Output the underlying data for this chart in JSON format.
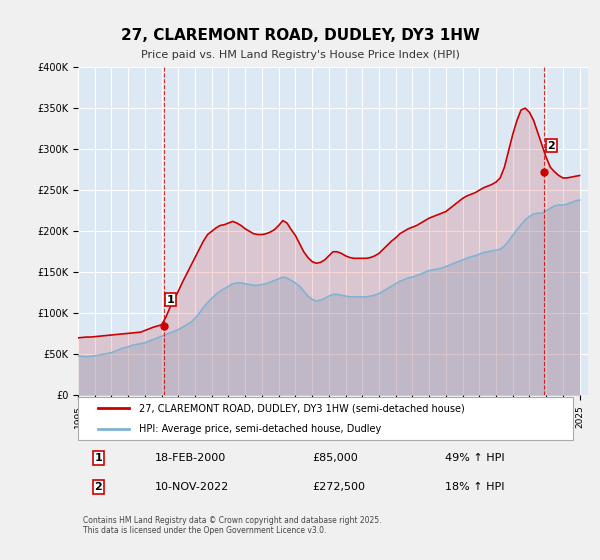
{
  "title": "27, CLAREMONT ROAD, DUDLEY, DY3 1HW",
  "subtitle": "Price paid vs. HM Land Registry's House Price Index (HPI)",
  "x_start": 1995.0,
  "x_end": 2025.5,
  "y_min": 0,
  "y_max": 400000,
  "y_ticks": [
    0,
    50000,
    100000,
    150000,
    200000,
    250000,
    300000,
    350000,
    400000
  ],
  "y_tick_labels": [
    "£0",
    "£50K",
    "£100K",
    "£150K",
    "£200K",
    "£250K",
    "£300K",
    "£350K",
    "£400K"
  ],
  "x_ticks": [
    1995,
    1996,
    1997,
    1998,
    1999,
    2000,
    2001,
    2002,
    2003,
    2004,
    2005,
    2006,
    2007,
    2008,
    2009,
    2010,
    2011,
    2012,
    2013,
    2014,
    2015,
    2016,
    2017,
    2018,
    2019,
    2020,
    2021,
    2022,
    2023,
    2024,
    2025
  ],
  "background_color": "#dce9f5",
  "plot_bg_color": "#dce9f5",
  "grid_color": "#ffffff",
  "red_line_color": "#cc0000",
  "blue_line_color": "#7fb3d3",
  "dashed_line_color": "#cc0000",
  "marker1_x": 2000.12,
  "marker1_y": 85000,
  "marker2_x": 2022.86,
  "marker2_y": 272500,
  "marker2_peak_y": 350000,
  "legend_label_red": "27, CLAREMONT ROAD, DUDLEY, DY3 1HW (semi-detached house)",
  "legend_label_blue": "HPI: Average price, semi-detached house, Dudley",
  "table_row1": [
    "1",
    "18-FEB-2000",
    "£85,000",
    "49% ↑ HPI"
  ],
  "table_row2": [
    "2",
    "10-NOV-2022",
    "£272,500",
    "18% ↑ HPI"
  ],
  "footer": "Contains HM Land Registry data © Crown copyright and database right 2025.\nThis data is licensed under the Open Government Licence v3.0.",
  "hpi_data": {
    "years": [
      1995.0,
      1995.25,
      1995.5,
      1995.75,
      1996.0,
      1996.25,
      1996.5,
      1996.75,
      1997.0,
      1997.25,
      1997.5,
      1997.75,
      1998.0,
      1998.25,
      1998.5,
      1998.75,
      1999.0,
      1999.25,
      1999.5,
      1999.75,
      2000.0,
      2000.25,
      2000.5,
      2000.75,
      2001.0,
      2001.25,
      2001.5,
      2001.75,
      2002.0,
      2002.25,
      2002.5,
      2002.75,
      2003.0,
      2003.25,
      2003.5,
      2003.75,
      2004.0,
      2004.25,
      2004.5,
      2004.75,
      2005.0,
      2005.25,
      2005.5,
      2005.75,
      2006.0,
      2006.25,
      2006.5,
      2006.75,
      2007.0,
      2007.25,
      2007.5,
      2007.75,
      2008.0,
      2008.25,
      2008.5,
      2008.75,
      2009.0,
      2009.25,
      2009.5,
      2009.75,
      2010.0,
      2010.25,
      2010.5,
      2010.75,
      2011.0,
      2011.25,
      2011.5,
      2011.75,
      2012.0,
      2012.25,
      2012.5,
      2012.75,
      2013.0,
      2013.25,
      2013.5,
      2013.75,
      2014.0,
      2014.25,
      2014.5,
      2014.75,
      2015.0,
      2015.25,
      2015.5,
      2015.75,
      2016.0,
      2016.25,
      2016.5,
      2016.75,
      2017.0,
      2017.25,
      2017.5,
      2017.75,
      2018.0,
      2018.25,
      2018.5,
      2018.75,
      2019.0,
      2019.25,
      2019.5,
      2019.75,
      2020.0,
      2020.25,
      2020.5,
      2020.75,
      2021.0,
      2021.25,
      2021.5,
      2021.75,
      2022.0,
      2022.25,
      2022.5,
      2022.75,
      2023.0,
      2023.25,
      2023.5,
      2023.75,
      2024.0,
      2024.25,
      2024.5,
      2024.75,
      2025.0
    ],
    "values": [
      48000,
      47500,
      47000,
      47500,
      48000,
      49000,
      50000,
      51000,
      52000,
      54000,
      56000,
      58000,
      59000,
      61000,
      62000,
      63000,
      64000,
      66000,
      68000,
      70000,
      72000,
      74000,
      76000,
      78000,
      80000,
      83000,
      86000,
      89000,
      94000,
      100000,
      107000,
      113000,
      118000,
      123000,
      127000,
      130000,
      133000,
      136000,
      137000,
      137000,
      136000,
      135000,
      134000,
      134000,
      135000,
      136000,
      138000,
      140000,
      142000,
      144000,
      143000,
      140000,
      137000,
      133000,
      127000,
      121000,
      117000,
      115000,
      116000,
      118000,
      121000,
      123000,
      123000,
      122000,
      121000,
      120000,
      120000,
      120000,
      120000,
      120000,
      121000,
      122000,
      124000,
      127000,
      130000,
      133000,
      136000,
      139000,
      141000,
      143000,
      144000,
      146000,
      148000,
      150000,
      152000,
      153000,
      154000,
      155000,
      157000,
      159000,
      161000,
      163000,
      165000,
      167000,
      169000,
      170000,
      172000,
      174000,
      175000,
      176000,
      177000,
      178000,
      182000,
      188000,
      195000,
      202000,
      208000,
      214000,
      218000,
      221000,
      222000,
      222000,
      225000,
      228000,
      231000,
      232000,
      232000,
      233000,
      235000,
      237000,
      238000
    ]
  },
  "red_data": {
    "years": [
      1995.0,
      1995.25,
      1995.5,
      1995.75,
      1996.0,
      1996.25,
      1996.5,
      1996.75,
      1997.0,
      1997.25,
      1997.5,
      1997.75,
      1998.0,
      1998.25,
      1998.5,
      1998.75,
      1999.0,
      1999.25,
      1999.5,
      1999.75,
      2000.0,
      2000.25,
      2000.5,
      2000.75,
      2001.0,
      2001.25,
      2001.5,
      2001.75,
      2002.0,
      2002.25,
      2002.5,
      2002.75,
      2003.0,
      2003.25,
      2003.5,
      2003.75,
      2004.0,
      2004.25,
      2004.5,
      2004.75,
      2005.0,
      2005.25,
      2005.5,
      2005.75,
      2006.0,
      2006.25,
      2006.5,
      2006.75,
      2007.0,
      2007.25,
      2007.5,
      2007.75,
      2008.0,
      2008.25,
      2008.5,
      2008.75,
      2009.0,
      2009.25,
      2009.5,
      2009.75,
      2010.0,
      2010.25,
      2010.5,
      2010.75,
      2011.0,
      2011.25,
      2011.5,
      2011.75,
      2012.0,
      2012.25,
      2012.5,
      2012.75,
      2013.0,
      2013.25,
      2013.5,
      2013.75,
      2014.0,
      2014.25,
      2014.5,
      2014.75,
      2015.0,
      2015.25,
      2015.5,
      2015.75,
      2016.0,
      2016.25,
      2016.5,
      2016.75,
      2017.0,
      2017.25,
      2017.5,
      2017.75,
      2018.0,
      2018.25,
      2018.5,
      2018.75,
      2019.0,
      2019.25,
      2019.5,
      2019.75,
      2020.0,
      2020.25,
      2020.5,
      2020.75,
      2021.0,
      2021.25,
      2021.5,
      2021.75,
      2022.0,
      2022.25,
      2022.5,
      2022.75,
      2023.0,
      2023.25,
      2023.5,
      2023.75,
      2024.0,
      2024.25,
      2024.5,
      2024.75,
      2025.0
    ],
    "values": [
      70000,
      70500,
      71000,
      71000,
      71500,
      72000,
      72500,
      73000,
      73500,
      74000,
      74500,
      75000,
      75500,
      76000,
      76500,
      77000,
      79000,
      81000,
      83000,
      84500,
      86000,
      95000,
      107000,
      117000,
      127000,
      138000,
      148000,
      158000,
      168000,
      178000,
      188000,
      196000,
      200000,
      204000,
      207000,
      208000,
      210000,
      212000,
      210000,
      207000,
      203000,
      200000,
      197000,
      196000,
      196000,
      197000,
      199000,
      202000,
      207000,
      213000,
      210000,
      202000,
      195000,
      185000,
      175000,
      168000,
      163000,
      161000,
      162000,
      165000,
      170000,
      175000,
      175000,
      173000,
      170000,
      168000,
      167000,
      167000,
      167000,
      167000,
      168000,
      170000,
      173000,
      178000,
      183000,
      188000,
      192000,
      197000,
      200000,
      203000,
      205000,
      207000,
      210000,
      213000,
      216000,
      218000,
      220000,
      222000,
      224000,
      228000,
      232000,
      236000,
      240000,
      243000,
      245000,
      247000,
      250000,
      253000,
      255000,
      257000,
      260000,
      265000,
      278000,
      298000,
      318000,
      335000,
      348000,
      350000,
      345000,
      335000,
      320000,
      305000,
      290000,
      278000,
      272500,
      268000,
      265000,
      265000,
      266000,
      267000,
      268000
    ]
  }
}
